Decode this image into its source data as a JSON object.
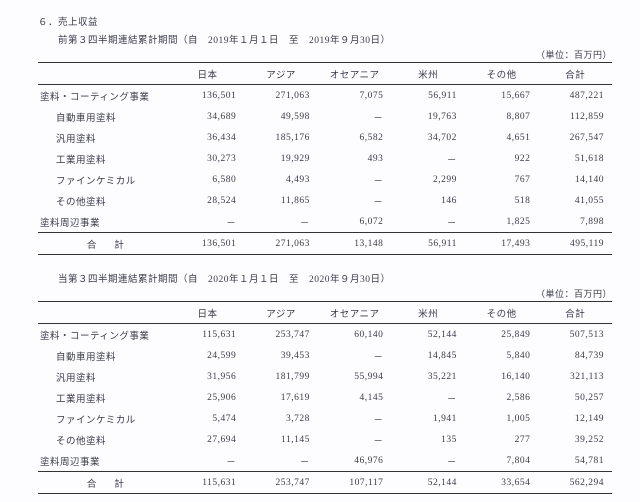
{
  "section": "６．売上収益",
  "unit_label": "（単位：百万円）",
  "dash": "－",
  "columns": [
    "日本",
    "アジア",
    "オセアニア",
    "米州",
    "その他",
    "合計"
  ],
  "t1": {
    "period": "前第３四半期連結累計期間（自　2019年１月１日　至　2019年９月30日）",
    "rows": [
      {
        "l": "塗料・コーティング事業",
        "i": 0,
        "v": [
          "136,501",
          "271,063",
          "7,075",
          "56,911",
          "15,667",
          "487,221"
        ]
      },
      {
        "l": "自動車用塗料",
        "i": 1,
        "v": [
          "34,689",
          "49,598",
          "－",
          "19,763",
          "8,807",
          "112,859"
        ]
      },
      {
        "l": "汎用塗料",
        "i": 1,
        "v": [
          "36,434",
          "185,176",
          "6,582",
          "34,702",
          "4,651",
          "267,547"
        ]
      },
      {
        "l": "工業用塗料",
        "i": 1,
        "v": [
          "30,273",
          "19,929",
          "493",
          "－",
          "922",
          "51,618"
        ]
      },
      {
        "l": "ファインケミカル",
        "i": 1,
        "v": [
          "6,580",
          "4,493",
          "－",
          "2,299",
          "767",
          "14,140"
        ]
      },
      {
        "l": "その他塗料",
        "i": 1,
        "v": [
          "28,524",
          "11,865",
          "－",
          "146",
          "518",
          "41,055"
        ]
      },
      {
        "l": "塗料周辺事業",
        "i": 0,
        "v": [
          "－",
          "－",
          "6,072",
          "－",
          "1,825",
          "7,898"
        ]
      }
    ],
    "total": {
      "l": "合計",
      "v": [
        "136,501",
        "271,063",
        "13,148",
        "56,911",
        "17,493",
        "495,119"
      ]
    }
  },
  "t2": {
    "period": "当第３四半期連結累計期間（自　2020年１月１日　至　2020年９月30日）",
    "rows": [
      {
        "l": "塗料・コーティング事業",
        "i": 0,
        "v": [
          "115,631",
          "253,747",
          "60,140",
          "52,144",
          "25,849",
          "507,513"
        ]
      },
      {
        "l": "自動車用塗料",
        "i": 1,
        "v": [
          "24,599",
          "39,453",
          "－",
          "14,845",
          "5,840",
          "84,739"
        ]
      },
      {
        "l": "汎用塗料",
        "i": 1,
        "v": [
          "31,956",
          "181,799",
          "55,994",
          "35,221",
          "16,140",
          "321,113"
        ]
      },
      {
        "l": "工業用塗料",
        "i": 1,
        "v": [
          "25,906",
          "17,619",
          "4,145",
          "－",
          "2,586",
          "50,257"
        ]
      },
      {
        "l": "ファインケミカル",
        "i": 1,
        "v": [
          "5,474",
          "3,728",
          "－",
          "1,941",
          "1,005",
          "12,149"
        ]
      },
      {
        "l": "その他塗料",
        "i": 1,
        "v": [
          "27,694",
          "11,145",
          "－",
          "135",
          "277",
          "39,252"
        ]
      },
      {
        "l": "塗料周辺事業",
        "i": 0,
        "v": [
          "－",
          "－",
          "46,976",
          "－",
          "7,804",
          "54,781"
        ]
      }
    ],
    "total": {
      "l": "合計",
      "v": [
        "115,631",
        "253,747",
        "107,117",
        "52,144",
        "33,654",
        "562,294"
      ]
    }
  }
}
